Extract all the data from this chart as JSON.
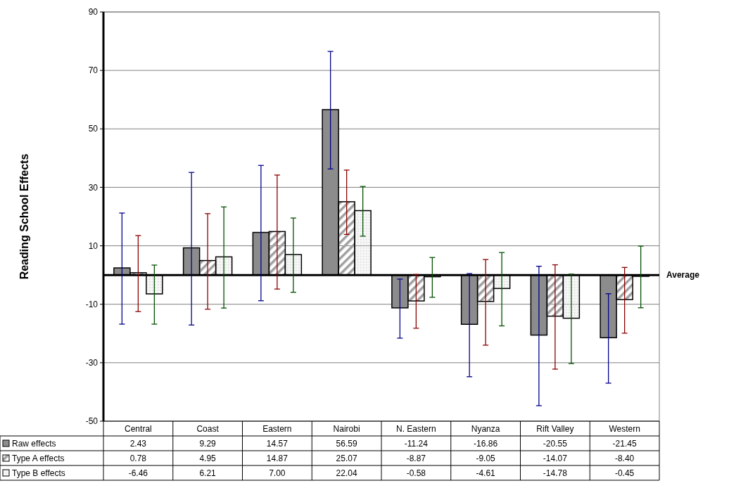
{
  "chart_data": {
    "type": "bar",
    "ylabel": "Reading School Effects",
    "categories": [
      "Central",
      "Coast",
      "Eastern",
      "Nairobi",
      "N. Eastern",
      "Nyanza",
      "Rift Valley",
      "Western"
    ],
    "series": [
      {
        "name": "Raw effects",
        "color": "#8c8c8c",
        "values": [
          2.43,
          9.29,
          14.57,
          56.59,
          -11.24,
          -16.86,
          -20.55,
          -21.45
        ],
        "value_labels": [
          "2.43",
          "9.29",
          "14.57",
          "56.59",
          "-11.24",
          "-16.86",
          "-20.55",
          "-21.45"
        ],
        "errors": [
          [
            -16.8,
            21.2
          ],
          [
            -17.1,
            35.1
          ],
          [
            -8.8,
            37.5
          ],
          [
            36.3,
            76.5
          ],
          [
            -21.6,
            -1.4
          ],
          [
            -34.8,
            0.5
          ],
          [
            -44.7,
            3.0
          ],
          [
            -37.0,
            -6.4
          ]
        ]
      },
      {
        "name": "Type A effects",
        "color": "#a0a0a0",
        "values": [
          0.78,
          4.95,
          14.87,
          25.07,
          -8.87,
          -9.05,
          -14.07,
          -8.4
        ],
        "value_labels": [
          "0.78",
          "4.95",
          "14.87",
          "25.07",
          "-8.87",
          "-9.05",
          "-14.07",
          "-8.40"
        ],
        "errors": [
          [
            -12.5,
            13.5
          ],
          [
            -11.7,
            21.0
          ],
          [
            -4.8,
            34.2
          ],
          [
            13.9,
            35.9
          ],
          [
            -18.2,
            0.2
          ],
          [
            -24.0,
            5.3
          ],
          [
            -32.2,
            3.5
          ],
          [
            -19.9,
            2.6
          ]
        ]
      },
      {
        "name": "Type B effects",
        "color": "#d8d8d8",
        "values": [
          -6.46,
          6.21,
          7.0,
          22.04,
          -0.58,
          -4.61,
          -14.78,
          -0.45
        ],
        "value_labels": [
          "-6.46",
          "6.21",
          "7.00",
          "22.04",
          "-0.58",
          "-4.61",
          "-14.78",
          "-0.45"
        ],
        "errors": [
          [
            -16.8,
            3.4
          ],
          [
            -11.3,
            23.3
          ],
          [
            -5.9,
            19.5
          ],
          [
            13.3,
            30.3
          ],
          [
            -7.6,
            6.0
          ],
          [
            -17.4,
            7.7
          ],
          [
            -30.3,
            0.3
          ],
          [
            -11.2,
            9.9
          ]
        ]
      }
    ],
    "ylim": [
      -50,
      90
    ],
    "yticks": [
      -50,
      -30,
      -10,
      10,
      30,
      50,
      70,
      90
    ],
    "grid": "y",
    "legend": "bottom",
    "ref_lines": [
      {
        "axis": "y",
        "value": 0,
        "label": "Average"
      }
    ]
  }
}
